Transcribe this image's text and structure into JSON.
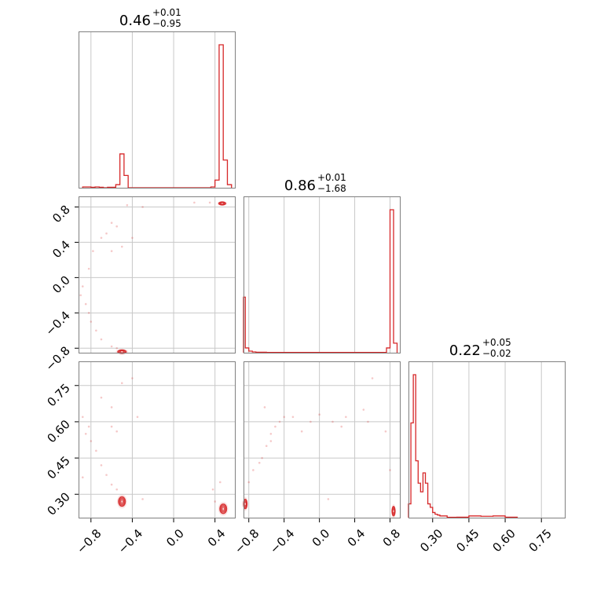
{
  "colors": {
    "series": "#d62728",
    "grid": "#c8c8c8",
    "frame": "#808080"
  },
  "chart_data": {
    "type": "corner",
    "parameters": 3,
    "ticks": {
      "x1": {
        "values": [
          -0.8,
          -0.4,
          0.0,
          0.4
        ],
        "labels": [
          "−0.8",
          "−0.4",
          "0.0",
          "0.4"
        ]
      },
      "x2": {
        "values": [
          -0.8,
          -0.4,
          0.0,
          0.4,
          0.8
        ],
        "labels": [
          "−0.8",
          "−0.4",
          "0.0",
          "0.4",
          "0.8"
        ]
      },
      "x3": {
        "values": [
          0.3,
          0.45,
          0.6,
          0.75
        ],
        "labels": [
          "0.30",
          "0.45",
          "0.60",
          "0.75"
        ]
      },
      "y2": {
        "values": [
          0.8,
          0.4,
          0.0,
          -0.4,
          -0.8
        ],
        "labels": [
          "0.8",
          "0.4",
          "0.0",
          "−0.4",
          "−0.8"
        ]
      },
      "y3": {
        "values": [
          0.75,
          0.6,
          0.45,
          0.3
        ],
        "labels": [
          "0.75",
          "0.60",
          "0.45",
          "0.30"
        ]
      }
    },
    "titles": [
      {
        "value": "0.46",
        "plus": "+0.01",
        "minus": "−0.95"
      },
      {
        "value": "0.86",
        "plus": "+0.01",
        "minus": "−1.68"
      },
      {
        "value": "0.22",
        "plus": "+0.05",
        "minus": "−0.02"
      }
    ],
    "ranges": {
      "p1": [
        -0.92,
        0.6
      ],
      "p2": [
        -0.86,
        0.92
      ],
      "p3": [
        0.2,
        0.85
      ]
    },
    "histograms": [
      {
        "param": "p1",
        "bin_edges": [
          -0.88,
          -0.84,
          -0.8,
          -0.76,
          -0.72,
          -0.68,
          -0.64,
          -0.6,
          -0.56,
          -0.52,
          -0.48,
          -0.44,
          -0.4,
          -0.36,
          -0.32,
          -0.28,
          -0.24,
          -0.2,
          -0.16,
          -0.12,
          -0.08,
          -0.04,
          0.0,
          0.04,
          0.08,
          0.12,
          0.16,
          0.2,
          0.24,
          0.28,
          0.32,
          0.36,
          0.4,
          0.44,
          0.48,
          0.52,
          0.56
        ],
        "counts": [
          0.005,
          0.005,
          0.003,
          0.005,
          0.003,
          0,
          0.003,
          0.003,
          0.02,
          0.22,
          0.08,
          0,
          0,
          0,
          0,
          0,
          0,
          0,
          0,
          0,
          0,
          0,
          0,
          0,
          0,
          0,
          0,
          0,
          0,
          0,
          0,
          0.005,
          0.05,
          0.93,
          0.18,
          0.02
        ]
      },
      {
        "param": "p2",
        "bin_edges": [
          -0.88,
          -0.84,
          -0.8,
          -0.76,
          -0.72,
          -0.68,
          -0.64,
          -0.6,
          -0.56,
          -0.52,
          -0.48,
          -0.44,
          -0.4,
          -0.36,
          -0.32,
          -0.28,
          -0.24,
          -0.2,
          -0.16,
          -0.12,
          -0.08,
          -0.04,
          0.0,
          0.04,
          0.08,
          0.12,
          0.16,
          0.2,
          0.24,
          0.28,
          0.32,
          0.36,
          0.4,
          0.44,
          0.48,
          0.52,
          0.56,
          0.6,
          0.64,
          0.68,
          0.72,
          0.76,
          0.8,
          0.84,
          0.88
        ],
        "counts": [
          0.35,
          0.03,
          0.01,
          0.005,
          0.003,
          0.003,
          0.003,
          0.002,
          0.002,
          0.002,
          0.002,
          0.002,
          0.002,
          0.002,
          0.002,
          0.002,
          0.002,
          0.002,
          0.002,
          0.002,
          0.002,
          0.002,
          0.002,
          0.002,
          0.002,
          0.002,
          0.002,
          0.002,
          0.002,
          0.002,
          0.002,
          0.002,
          0.002,
          0.002,
          0.002,
          0.002,
          0.002,
          0.002,
          0.002,
          0.002,
          0.002,
          0.03,
          0.9,
          0.06
        ]
      },
      {
        "param": "p3",
        "bin_edges": [
          0.2,
          0.21,
          0.22,
          0.23,
          0.24,
          0.25,
          0.26,
          0.27,
          0.28,
          0.29,
          0.3,
          0.31,
          0.32,
          0.33,
          0.34,
          0.35,
          0.36,
          0.4,
          0.45,
          0.5,
          0.55,
          0.6,
          0.65
        ],
        "counts": [
          0.08,
          0.55,
          0.83,
          0.33,
          0.2,
          0.15,
          0.26,
          0.2,
          0.08,
          0.06,
          0.03,
          0.02,
          0.015,
          0.01,
          0.01,
          0.01,
          0.002,
          0.003,
          0.01,
          0.008,
          0.01,
          0.003
        ]
      }
    ],
    "scatter_panels": [
      {
        "x_param": "p1",
        "y_param": "p2",
        "clusters": [
          {
            "x": 0.47,
            "y": 0.84,
            "sx": 0.02,
            "sy": 0.01
          },
          {
            "x": -0.5,
            "y": -0.84,
            "sx": 0.025,
            "sy": 0.012
          }
        ],
        "points": [
          [
            -0.88,
            -0.1
          ],
          [
            -0.9,
            -0.2
          ],
          [
            -0.85,
            -0.3
          ],
          [
            -0.82,
            0.1
          ],
          [
            -0.8,
            -0.5
          ],
          [
            -0.75,
            -0.6
          ],
          [
            -0.7,
            -0.7
          ],
          [
            -0.6,
            -0.78
          ],
          [
            -0.55,
            -0.8
          ],
          [
            -0.78,
            0.3
          ],
          [
            -0.7,
            0.45
          ],
          [
            -0.65,
            0.5
          ],
          [
            -0.6,
            0.62
          ],
          [
            -0.55,
            0.58
          ],
          [
            -0.45,
            0.82
          ],
          [
            -0.4,
            0.45
          ],
          [
            -0.6,
            0.3
          ],
          [
            -0.3,
            0.8
          ],
          [
            -0.5,
            0.35
          ],
          [
            0.2,
            0.85
          ],
          [
            0.35,
            0.85
          ],
          [
            -0.82,
            -0.4
          ]
        ]
      },
      {
        "x_param": "p1",
        "y_param": "p3",
        "clusters": [
          {
            "x": -0.5,
            "y": 0.27,
            "sx": 0.02,
            "sy": 0.012
          },
          {
            "x": 0.48,
            "y": 0.24,
            "sx": 0.02,
            "sy": 0.012
          }
        ],
        "points": [
          [
            -0.88,
            0.62
          ],
          [
            -0.85,
            0.55
          ],
          [
            -0.8,
            0.52
          ],
          [
            -0.75,
            0.48
          ],
          [
            -0.7,
            0.42
          ],
          [
            -0.65,
            0.38
          ],
          [
            -0.6,
            0.34
          ],
          [
            -0.55,
            0.32
          ],
          [
            -0.82,
            0.58
          ],
          [
            -0.7,
            0.7
          ],
          [
            -0.4,
            0.78
          ],
          [
            -0.6,
            0.66
          ],
          [
            -0.5,
            0.76
          ],
          [
            -0.6,
            0.58
          ],
          [
            -0.35,
            0.62
          ],
          [
            -0.88,
            0.37
          ],
          [
            -0.55,
            0.56
          ],
          [
            0.38,
            0.32
          ],
          [
            0.45,
            0.35
          ],
          [
            -0.3,
            0.28
          ],
          [
            0.4,
            0.27
          ]
        ]
      },
      {
        "x_param": "p2",
        "y_param": "p3",
        "clusters": [
          {
            "x": -0.84,
            "y": 0.26,
            "sx": 0.012,
            "sy": 0.012
          },
          {
            "x": 0.84,
            "y": 0.23,
            "sx": 0.01,
            "sy": 0.012
          }
        ],
        "points": [
          [
            -0.8,
            0.35
          ],
          [
            -0.75,
            0.4
          ],
          [
            -0.65,
            0.45
          ],
          [
            -0.6,
            0.5
          ],
          [
            -0.55,
            0.55
          ],
          [
            -0.5,
            0.58
          ],
          [
            -0.45,
            0.6
          ],
          [
            -0.4,
            0.62
          ],
          [
            -0.3,
            0.62
          ],
          [
            -0.2,
            0.56
          ],
          [
            -0.1,
            0.6
          ],
          [
            0.0,
            0.63
          ],
          [
            0.15,
            0.6
          ],
          [
            0.3,
            0.62
          ],
          [
            0.5,
            0.65
          ],
          [
            0.55,
            0.6
          ],
          [
            0.6,
            0.78
          ],
          [
            0.75,
            0.56
          ],
          [
            0.8,
            0.4
          ],
          [
            -0.62,
            0.66
          ],
          [
            -0.55,
            0.52
          ],
          [
            0.1,
            0.28
          ],
          [
            -0.68,
            0.43
          ],
          [
            0.25,
            0.58
          ]
        ]
      }
    ]
  }
}
